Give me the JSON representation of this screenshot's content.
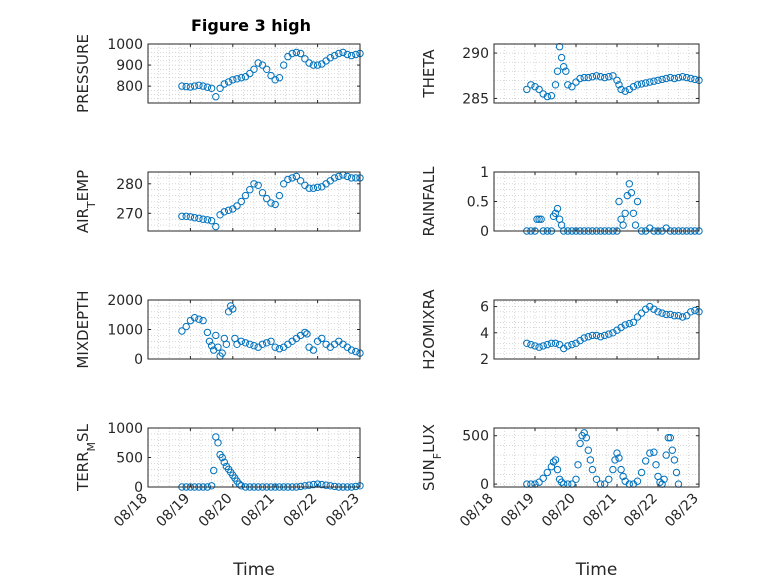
{
  "figure": {
    "title": "Figure 3 high",
    "marker_color": "#0072BD"
  },
  "chart_data": [
    {
      "type": "scatter",
      "ylabel": "PRESSURE",
      "ylim": [
        720,
        1000
      ],
      "yticks": [
        800,
        900,
        1000
      ],
      "xlim": [
        0,
        5
      ],
      "xticks": [
        0,
        1,
        2,
        3,
        4,
        5
      ],
      "xtick_labels": [
        "08/18",
        "08/19",
        "08/20",
        "08/21",
        "08/22",
        "08/23"
      ],
      "xlabel": "",
      "grid": "minor-dotted",
      "x": [
        0.8,
        0.9,
        1.0,
        1.1,
        1.2,
        1.3,
        1.4,
        1.5,
        1.6,
        1.7,
        1.8,
        1.9,
        2.0,
        2.1,
        2.2,
        2.3,
        2.4,
        2.5,
        2.6,
        2.7,
        2.8,
        2.9,
        3.0,
        3.1,
        3.2,
        3.3,
        3.4,
        3.5,
        3.6,
        3.7,
        3.8,
        3.9,
        4.0,
        4.1,
        4.2,
        4.3,
        4.4,
        4.5,
        4.6,
        4.7,
        4.8,
        4.9,
        5.0
      ],
      "y": [
        800,
        798,
        796,
        800,
        804,
        800,
        795,
        790,
        750,
        790,
        810,
        820,
        830,
        835,
        840,
        845,
        860,
        880,
        910,
        900,
        880,
        850,
        830,
        840,
        900,
        940,
        955,
        960,
        955,
        930,
        910,
        900,
        900,
        905,
        920,
        935,
        945,
        955,
        960,
        950,
        945,
        950,
        955
      ]
    },
    {
      "type": "scatter",
      "ylabel": "THETA",
      "ylim": [
        284.5,
        291
      ],
      "yticks": [
        285,
        290
      ],
      "xlim": [
        0,
        5
      ],
      "xticks": [
        0,
        1,
        2,
        3,
        4,
        5
      ],
      "xtick_labels": [
        "08/18",
        "08/19",
        "08/20",
        "08/21",
        "08/22",
        "08/23"
      ],
      "xlabel": "",
      "grid": "minor-dotted",
      "x": [
        0.8,
        0.9,
        1.0,
        1.1,
        1.2,
        1.3,
        1.4,
        1.5,
        1.55,
        1.6,
        1.65,
        1.7,
        1.75,
        1.8,
        1.9,
        2.0,
        2.1,
        2.2,
        2.3,
        2.4,
        2.5,
        2.6,
        2.7,
        2.8,
        2.9,
        3.0,
        3.05,
        3.1,
        3.2,
        3.3,
        3.4,
        3.5,
        3.6,
        3.7,
        3.8,
        3.9,
        4.0,
        4.1,
        4.2,
        4.3,
        4.4,
        4.5,
        4.6,
        4.7,
        4.8,
        4.9,
        5.0
      ],
      "y": [
        286.0,
        286.5,
        286.3,
        286.0,
        285.5,
        285.2,
        285.3,
        286.5,
        288.0,
        290.7,
        289.5,
        288.5,
        288.0,
        286.5,
        286.3,
        286.8,
        287.2,
        287.3,
        287.3,
        287.4,
        287.5,
        287.4,
        287.3,
        287.4,
        287.5,
        287.0,
        286.5,
        286.0,
        285.8,
        286.0,
        286.3,
        286.5,
        286.6,
        286.7,
        286.8,
        286.9,
        287.0,
        287.1,
        287.2,
        287.3,
        287.2,
        287.3,
        287.4,
        287.3,
        287.2,
        287.1,
        287.0
      ]
    },
    {
      "type": "scatter",
      "ylabel": "AIR",
      "ylabel_sub": "T",
      "ylabel_rest": "EMP",
      "ylim": [
        264,
        284
      ],
      "yticks": [
        270,
        280
      ],
      "xlim": [
        0,
        5
      ],
      "xticks": [
        0,
        1,
        2,
        3,
        4,
        5
      ],
      "xtick_labels": [
        "08/18",
        "08/19",
        "08/20",
        "08/21",
        "08/22",
        "08/23"
      ],
      "xlabel": "",
      "grid": "minor-dotted",
      "x": [
        0.8,
        0.9,
        1.0,
        1.1,
        1.2,
        1.3,
        1.4,
        1.5,
        1.6,
        1.7,
        1.8,
        1.9,
        2.0,
        2.1,
        2.2,
        2.3,
        2.4,
        2.5,
        2.6,
        2.7,
        2.8,
        2.9,
        3.0,
        3.1,
        3.2,
        3.3,
        3.4,
        3.5,
        3.6,
        3.7,
        3.8,
        3.9,
        4.0,
        4.1,
        4.2,
        4.3,
        4.4,
        4.5,
        4.6,
        4.7,
        4.8,
        4.9,
        5.0
      ],
      "y": [
        269,
        269,
        268.8,
        268.5,
        268.3,
        268.0,
        267.8,
        267.5,
        265.5,
        269.5,
        270.5,
        271,
        271.5,
        272.5,
        274,
        276,
        278,
        280,
        279.5,
        277,
        275,
        273.5,
        273,
        276,
        280,
        281.5,
        282,
        282.5,
        281,
        279.5,
        278.5,
        278.5,
        278.8,
        279,
        280,
        281,
        282,
        282.5,
        283,
        282.5,
        282,
        282,
        282
      ]
    },
    {
      "type": "scatter",
      "ylabel": "RAINFALL",
      "ylim": [
        0,
        1
      ],
      "yticks": [
        0,
        0.5,
        1
      ],
      "xlim": [
        0,
        5
      ],
      "xticks": [
        0,
        1,
        2,
        3,
        4,
        5
      ],
      "xtick_labels": [
        "08/18",
        "08/19",
        "08/20",
        "08/21",
        "08/22",
        "08/23"
      ],
      "xlabel": "",
      "grid": "minor-dotted",
      "x": [
        0.8,
        0.9,
        1.0,
        1.05,
        1.1,
        1.15,
        1.2,
        1.3,
        1.4,
        1.45,
        1.5,
        1.55,
        1.6,
        1.65,
        1.7,
        1.8,
        1.9,
        2.0,
        2.1,
        2.2,
        2.3,
        2.4,
        2.5,
        2.6,
        2.7,
        2.8,
        2.9,
        3.0,
        3.05,
        3.1,
        3.15,
        3.2,
        3.25,
        3.3,
        3.35,
        3.4,
        3.45,
        3.5,
        3.6,
        3.7,
        3.8,
        3.9,
        4.0,
        4.1,
        4.2,
        4.3,
        4.4,
        4.5,
        4.6,
        4.7,
        4.8,
        4.9,
        5.0
      ],
      "y": [
        0,
        0,
        0,
        0.2,
        0.2,
        0.2,
        0,
        0,
        0,
        0.25,
        0.3,
        0.38,
        0.2,
        0.1,
        0,
        0,
        0,
        0,
        0,
        0,
        0,
        0,
        0,
        0,
        0,
        0,
        0,
        0,
        0.5,
        0.2,
        0.1,
        0.3,
        0.6,
        0.8,
        0.65,
        0.3,
        0.1,
        0.5,
        0,
        0,
        0.05,
        0,
        0,
        0,
        0.05,
        0,
        0,
        0,
        0,
        0,
        0,
        0,
        0
      ]
    },
    {
      "type": "scatter",
      "ylabel": "MIXDEPTH",
      "ylim": [
        0,
        2000
      ],
      "yticks": [
        0,
        1000,
        2000
      ],
      "xlim": [
        0,
        5
      ],
      "xticks": [
        0,
        1,
        2,
        3,
        4,
        5
      ],
      "xtick_labels": [
        "08/18",
        "08/19",
        "08/20",
        "08/21",
        "08/22",
        "08/23"
      ],
      "xlabel": "",
      "grid": "minor-dotted",
      "x": [
        0.8,
        0.9,
        1.0,
        1.1,
        1.2,
        1.3,
        1.4,
        1.45,
        1.5,
        1.55,
        1.6,
        1.65,
        1.7,
        1.75,
        1.8,
        1.85,
        1.9,
        1.95,
        2.0,
        2.05,
        2.1,
        2.2,
        2.3,
        2.4,
        2.5,
        2.6,
        2.7,
        2.8,
        2.9,
        3.0,
        3.1,
        3.2,
        3.3,
        3.4,
        3.5,
        3.6,
        3.7,
        3.75,
        3.8,
        3.9,
        4.0,
        4.1,
        4.2,
        4.3,
        4.4,
        4.5,
        4.6,
        4.7,
        4.8,
        4.9,
        5.0
      ],
      "y": [
        950,
        1100,
        1300,
        1400,
        1350,
        1300,
        900,
        600,
        450,
        300,
        800,
        400,
        100,
        200,
        700,
        500,
        1600,
        1800,
        1700,
        700,
        500,
        600,
        550,
        500,
        450,
        400,
        500,
        550,
        600,
        400,
        350,
        400,
        500,
        600,
        700,
        800,
        900,
        850,
        400,
        300,
        600,
        700,
        500,
        400,
        500,
        600,
        500,
        400,
        300,
        250,
        200
      ]
    },
    {
      "type": "scatter",
      "ylabel": "H2OMIXRA",
      "ylim": [
        2,
        6.5
      ],
      "yticks": [
        2,
        4,
        6
      ],
      "xlim": [
        0,
        5
      ],
      "xticks": [
        0,
        1,
        2,
        3,
        4,
        5
      ],
      "xtick_labels": [
        "08/18",
        "08/19",
        "08/20",
        "08/21",
        "08/22",
        "08/23"
      ],
      "xlabel": "",
      "grid": "minor-dotted",
      "x": [
        0.8,
        0.9,
        1.0,
        1.1,
        1.2,
        1.3,
        1.4,
        1.5,
        1.6,
        1.7,
        1.8,
        1.9,
        2.0,
        2.1,
        2.2,
        2.3,
        2.4,
        2.5,
        2.6,
        2.7,
        2.8,
        2.9,
        3.0,
        3.1,
        3.2,
        3.3,
        3.4,
        3.5,
        3.6,
        3.7,
        3.8,
        3.9,
        4.0,
        4.1,
        4.2,
        4.3,
        4.4,
        4.5,
        4.6,
        4.7,
        4.8,
        4.9,
        5.0
      ],
      "y": [
        3.2,
        3.1,
        3.0,
        2.9,
        3.0,
        3.1,
        3.2,
        3.2,
        3.1,
        2.8,
        3.0,
        3.1,
        3.2,
        3.4,
        3.6,
        3.7,
        3.8,
        3.8,
        3.7,
        3.8,
        3.9,
        4.0,
        4.2,
        4.4,
        4.6,
        4.7,
        4.8,
        5.2,
        5.5,
        5.8,
        6.0,
        5.8,
        5.6,
        5.5,
        5.4,
        5.4,
        5.3,
        5.3,
        5.2,
        5.3,
        5.6,
        5.7,
        5.6
      ]
    },
    {
      "type": "scatter",
      "ylabel": "TERR",
      "ylabel_sub": "M",
      "ylabel_rest": "SL",
      "ylim": [
        0,
        1000
      ],
      "yticks": [
        0,
        500,
        1000
      ],
      "xlim": [
        0,
        5
      ],
      "xticks": [
        0,
        1,
        2,
        3,
        4,
        5
      ],
      "xtick_labels": [
        "08/18",
        "08/19",
        "08/20",
        "08/21",
        "08/22",
        "08/23"
      ],
      "xlabel": "Time",
      "grid": "minor-dotted",
      "x": [
        0.8,
        0.9,
        1.0,
        1.1,
        1.2,
        1.3,
        1.4,
        1.5,
        1.55,
        1.6,
        1.65,
        1.7,
        1.75,
        1.8,
        1.85,
        1.9,
        1.95,
        2.0,
        2.05,
        2.1,
        2.15,
        2.2,
        2.3,
        2.4,
        2.5,
        2.6,
        2.7,
        2.8,
        2.9,
        3.0,
        3.1,
        3.2,
        3.3,
        3.4,
        3.5,
        3.6,
        3.7,
        3.8,
        3.9,
        4.0,
        4.1,
        4.2,
        4.3,
        4.4,
        4.5,
        4.6,
        4.7,
        4.8,
        4.9,
        5.0
      ],
      "y": [
        0,
        0,
        0,
        0,
        0,
        0,
        0,
        20,
        280,
        850,
        750,
        550,
        500,
        420,
        350,
        300,
        250,
        200,
        150,
        100,
        50,
        20,
        0,
        0,
        0,
        0,
        0,
        0,
        0,
        0,
        0,
        0,
        0,
        0,
        0,
        10,
        20,
        30,
        40,
        50,
        40,
        30,
        20,
        10,
        0,
        0,
        0,
        0,
        10,
        20
      ]
    },
    {
      "type": "scatter",
      "ylabel": "SUN",
      "ylabel_sub": "F",
      "ylabel_rest": "LUX",
      "ylim": [
        -30,
        580
      ],
      "yticks": [
        0,
        500
      ],
      "xlim": [
        0,
        5
      ],
      "xticks": [
        0,
        1,
        2,
        3,
        4,
        5
      ],
      "xtick_labels": [
        "08/18",
        "08/19",
        "08/20",
        "08/21",
        "08/22",
        "08/23"
      ],
      "xlabel": "Time",
      "grid": "minor-dotted",
      "x": [
        0.8,
        0.9,
        1.0,
        1.1,
        1.2,
        1.3,
        1.4,
        1.45,
        1.5,
        1.55,
        1.6,
        1.65,
        1.7,
        1.8,
        1.9,
        2.0,
        2.05,
        2.1,
        2.15,
        2.2,
        2.25,
        2.3,
        2.35,
        2.4,
        2.5,
        2.6,
        2.7,
        2.8,
        2.9,
        2.95,
        3.0,
        3.05,
        3.1,
        3.15,
        3.2,
        3.3,
        3.4,
        3.5,
        3.6,
        3.7,
        3.8,
        3.9,
        3.95,
        4.0,
        4.05,
        4.1,
        4.15,
        4.2,
        4.25,
        4.3,
        4.35,
        4.4,
        4.45,
        4.5
      ],
      "y": [
        0,
        0,
        0,
        20,
        60,
        120,
        180,
        230,
        250,
        150,
        50,
        20,
        0,
        0,
        0,
        50,
        200,
        420,
        500,
        530,
        480,
        350,
        250,
        150,
        50,
        0,
        0,
        50,
        150,
        250,
        320,
        270,
        150,
        80,
        30,
        0,
        0,
        30,
        120,
        240,
        320,
        330,
        200,
        80,
        20,
        0,
        50,
        300,
        480,
        480,
        350,
        250,
        120,
        0
      ]
    }
  ]
}
